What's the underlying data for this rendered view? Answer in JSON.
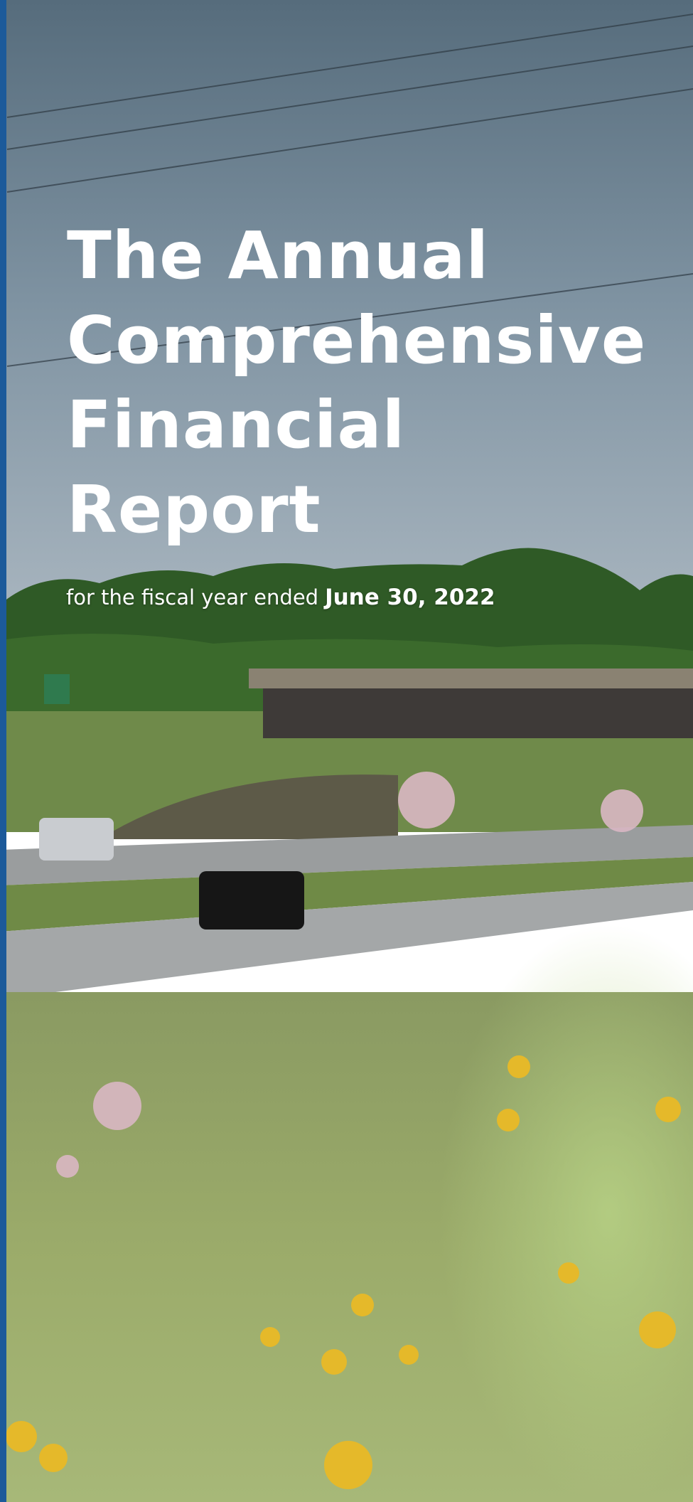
{
  "header": {
    "title_lines": [
      "The Annual",
      "Comprehensive",
      "Financial",
      "Report"
    ],
    "subtitle": {
      "prefix": "for the fiscal year ended",
      "date": "June 30, 2022"
    }
  }
}
